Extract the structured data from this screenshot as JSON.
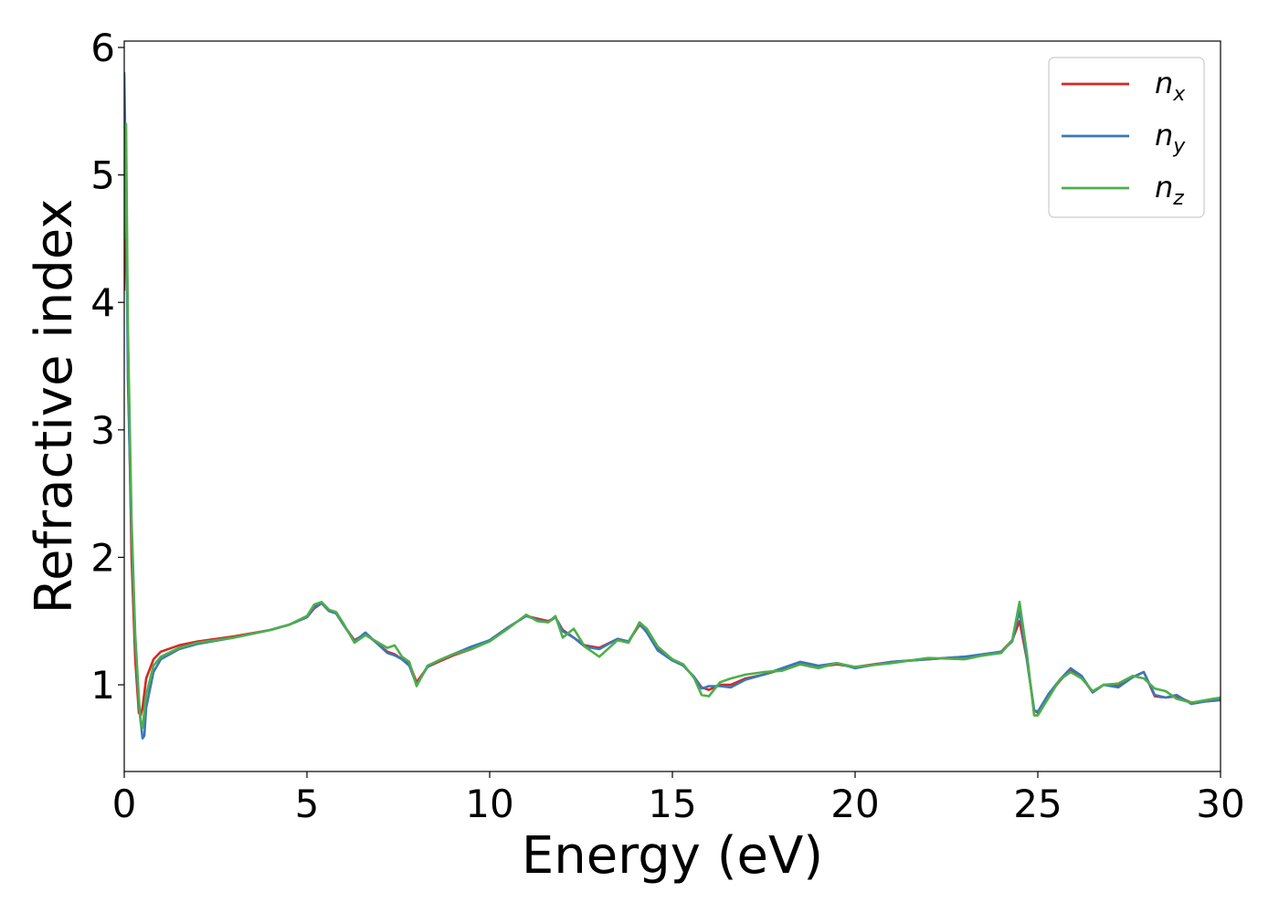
{
  "chart_data": {
    "type": "line",
    "title": "",
    "xlabel": "Energy (eV)",
    "ylabel": "Refractive index",
    "xlim": [
      0,
      30
    ],
    "ylim": [
      0.32,
      6.05
    ],
    "xticks": [
      0,
      5,
      10,
      15,
      20,
      25,
      30
    ],
    "yticks": [
      1,
      2,
      3,
      4,
      5,
      6
    ],
    "grid": false,
    "legend": {
      "placement": "top-right",
      "entries": [
        {
          "base": "n",
          "sub": "x"
        },
        {
          "base": "n",
          "sub": "y"
        },
        {
          "base": "n",
          "sub": "z"
        }
      ]
    },
    "series": [
      {
        "name": "n_x",
        "color": "#d62728",
        "x": [
          0.0,
          0.05,
          0.1,
          0.2,
          0.3,
          0.4,
          0.45,
          0.5,
          0.6,
          0.8,
          1.0,
          1.5,
          2.0,
          3.0,
          4.0,
          4.5,
          5.0,
          5.2,
          5.4,
          5.6,
          5.8,
          6.0,
          6.3,
          6.6,
          6.9,
          7.2,
          7.4,
          7.6,
          7.8,
          8.0,
          8.3,
          8.6,
          9.0,
          9.5,
          10.0,
          10.5,
          11.0,
          11.3,
          11.6,
          11.8,
          12.0,
          12.3,
          12.6,
          13.0,
          13.5,
          13.8,
          14.1,
          14.3,
          14.6,
          15.0,
          15.3,
          15.6,
          15.8,
          16.0,
          16.3,
          16.6,
          17.0,
          17.5,
          18.0,
          18.5,
          19.0,
          19.5,
          20.0,
          21.0,
          22.0,
          23.0,
          23.5,
          24.0,
          24.3,
          24.5,
          24.7,
          24.9,
          25.0,
          25.3,
          25.6,
          25.9,
          26.2,
          26.5,
          26.8,
          27.2,
          27.6,
          27.9,
          28.2,
          28.5,
          28.8,
          29.2,
          29.6,
          30.0
        ],
        "y": [
          4.1,
          5.1,
          3.6,
          2.0,
          1.2,
          0.78,
          0.76,
          0.82,
          1.05,
          1.2,
          1.26,
          1.31,
          1.34,
          1.38,
          1.43,
          1.47,
          1.53,
          1.6,
          1.64,
          1.58,
          1.56,
          1.47,
          1.35,
          1.4,
          1.33,
          1.26,
          1.24,
          1.2,
          1.17,
          1.02,
          1.14,
          1.18,
          1.23,
          1.28,
          1.35,
          1.45,
          1.54,
          1.52,
          1.5,
          1.53,
          1.43,
          1.37,
          1.31,
          1.29,
          1.36,
          1.34,
          1.47,
          1.42,
          1.28,
          1.2,
          1.15,
          1.06,
          0.98,
          0.96,
          1.0,
          1.0,
          1.05,
          1.08,
          1.12,
          1.17,
          1.14,
          1.16,
          1.14,
          1.18,
          1.2,
          1.22,
          1.23,
          1.26,
          1.35,
          1.5,
          1.2,
          0.8,
          0.78,
          0.92,
          1.03,
          1.12,
          1.06,
          0.94,
          1.0,
          0.99,
          1.06,
          1.1,
          0.91,
          0.9,
          0.91,
          0.86,
          0.87,
          0.88
        ]
      },
      {
        "name": "n_y",
        "color": "#3a78b8",
        "x": [
          0.0,
          0.05,
          0.1,
          0.2,
          0.3,
          0.4,
          0.5,
          0.55,
          0.6,
          0.8,
          1.0,
          1.5,
          2.0,
          3.0,
          4.0,
          4.5,
          5.0,
          5.2,
          5.4,
          5.6,
          5.8,
          6.0,
          6.3,
          6.6,
          6.9,
          7.2,
          7.4,
          7.6,
          7.8,
          8.0,
          8.3,
          8.6,
          9.0,
          9.5,
          10.0,
          10.5,
          11.0,
          11.3,
          11.6,
          11.8,
          12.0,
          12.3,
          12.6,
          13.0,
          13.5,
          13.8,
          14.1,
          14.3,
          14.6,
          15.0,
          15.3,
          15.6,
          15.8,
          16.0,
          16.3,
          16.6,
          17.0,
          17.5,
          18.0,
          18.5,
          19.0,
          19.5,
          20.0,
          21.0,
          22.0,
          23.0,
          23.5,
          24.0,
          24.3,
          24.5,
          24.7,
          24.9,
          25.0,
          25.3,
          25.6,
          25.9,
          26.2,
          26.5,
          26.8,
          27.2,
          27.6,
          27.9,
          28.2,
          28.5,
          28.8,
          29.2,
          29.6,
          30.0
        ],
        "y": [
          5.8,
          4.9,
          3.4,
          2.2,
          1.35,
          0.85,
          0.58,
          0.6,
          0.82,
          1.1,
          1.2,
          1.28,
          1.32,
          1.37,
          1.43,
          1.47,
          1.53,
          1.61,
          1.64,
          1.58,
          1.56,
          1.47,
          1.34,
          1.41,
          1.33,
          1.25,
          1.23,
          1.2,
          1.15,
          1.0,
          1.14,
          1.19,
          1.24,
          1.3,
          1.35,
          1.45,
          1.54,
          1.51,
          1.49,
          1.53,
          1.42,
          1.37,
          1.3,
          1.28,
          1.36,
          1.34,
          1.48,
          1.41,
          1.27,
          1.19,
          1.15,
          1.06,
          0.97,
          0.99,
          0.99,
          0.98,
          1.04,
          1.08,
          1.13,
          1.18,
          1.15,
          1.17,
          1.13,
          1.18,
          1.2,
          1.22,
          1.24,
          1.26,
          1.34,
          1.58,
          1.2,
          0.8,
          0.79,
          0.93,
          1.04,
          1.13,
          1.07,
          0.94,
          1.0,
          0.98,
          1.06,
          1.1,
          0.92,
          0.9,
          0.92,
          0.85,
          0.87,
          0.88
        ]
      },
      {
        "name": "n_z",
        "color": "#4daf4a",
        "x": [
          0.0,
          0.05,
          0.1,
          0.2,
          0.3,
          0.4,
          0.45,
          0.5,
          0.6,
          0.8,
          1.0,
          1.5,
          2.0,
          3.0,
          4.0,
          4.5,
          5.0,
          5.2,
          5.4,
          5.6,
          5.8,
          6.0,
          6.3,
          6.6,
          6.9,
          7.2,
          7.4,
          7.6,
          7.8,
          8.0,
          8.3,
          8.6,
          9.0,
          9.5,
          10.0,
          10.5,
          11.0,
          11.3,
          11.6,
          11.8,
          12.0,
          12.3,
          12.6,
          13.0,
          13.5,
          13.8,
          14.1,
          14.3,
          14.6,
          15.0,
          15.3,
          15.6,
          15.8,
          16.0,
          16.3,
          16.6,
          17.0,
          17.5,
          18.0,
          18.5,
          19.0,
          19.5,
          20.0,
          21.0,
          22.0,
          23.0,
          23.5,
          24.0,
          24.3,
          24.5,
          24.7,
          24.9,
          25.0,
          25.3,
          25.6,
          25.9,
          26.2,
          26.5,
          26.8,
          27.2,
          27.6,
          27.9,
          28.2,
          28.5,
          28.8,
          29.2,
          29.6,
          30.0
        ],
        "y": [
          4.5,
          5.4,
          3.8,
          2.3,
          1.4,
          0.9,
          0.7,
          0.66,
          0.92,
          1.15,
          1.22,
          1.29,
          1.33,
          1.37,
          1.43,
          1.47,
          1.54,
          1.63,
          1.65,
          1.59,
          1.57,
          1.48,
          1.33,
          1.39,
          1.34,
          1.29,
          1.31,
          1.22,
          1.18,
          0.99,
          1.15,
          1.19,
          1.24,
          1.28,
          1.34,
          1.44,
          1.55,
          1.5,
          1.49,
          1.54,
          1.37,
          1.44,
          1.3,
          1.22,
          1.35,
          1.33,
          1.49,
          1.44,
          1.3,
          1.2,
          1.16,
          1.05,
          0.92,
          0.91,
          1.02,
          1.05,
          1.08,
          1.1,
          1.11,
          1.16,
          1.13,
          1.17,
          1.14,
          1.17,
          1.21,
          1.2,
          1.23,
          1.25,
          1.35,
          1.65,
          1.25,
          0.76,
          0.76,
          0.9,
          1.04,
          1.1,
          1.05,
          0.95,
          1.0,
          1.01,
          1.07,
          1.05,
          0.97,
          0.95,
          0.89,
          0.86,
          0.88,
          0.9
        ]
      }
    ]
  }
}
